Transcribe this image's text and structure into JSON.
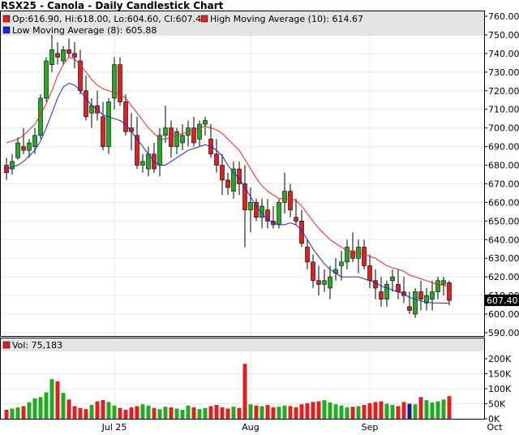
{
  "chart_data": {
    "type": "candlestick",
    "title": "RSX25 - Canola - Daily Candlestick Chart",
    "legend": {
      "ohlc": "Op:616.90, Hi:618.00, Lo:604.60, Cl:607.40",
      "high_ma": "High Moving Average (10): 614.67",
      "low_ma": "Low Moving Average (8): 605.88",
      "volume": "Vol: 75,183"
    },
    "colors": {
      "up": "#22aa22",
      "down": "#e02020",
      "high_ma": "#ee2222",
      "low_ma": "#2222dd",
      "vol_special": "#1a1a8c",
      "panel_header": "#e4e4e4",
      "last_box": "#000000"
    },
    "price_axis": {
      "min": 590,
      "max": 760,
      "step": 10,
      "ticks": [
        "760.00",
        "750.00",
        "740.00",
        "730.00",
        "720.00",
        "710.00",
        "700.00",
        "690.00",
        "680.00",
        "670.00",
        "660.00",
        "650.00",
        "640.00",
        "630.00",
        "620.00",
        "610.00",
        "600.00",
        "590.00"
      ]
    },
    "last_price": "607.40",
    "last_value": 607.4,
    "volume_axis": {
      "min": 0,
      "max": 200000,
      "ticks": [
        "200K",
        "150K",
        "100K",
        "50K",
        "0K"
      ],
      "tick_values": [
        200000,
        150000,
        100000,
        50000,
        0
      ]
    },
    "x_labels": [
      {
        "label": "Jul 25",
        "index": 19
      },
      {
        "label": "Aug",
        "index": 43
      },
      {
        "label": "Sep",
        "index": 64
      },
      {
        "label": "Oct",
        "index": 86
      }
    ],
    "candles": [
      [
        680,
        684,
        672,
        676
      ],
      [
        678,
        686,
        675,
        682
      ],
      [
        684,
        695,
        683,
        692
      ],
      [
        690,
        700,
        686,
        688
      ],
      [
        688,
        694,
        684,
        692
      ],
      [
        690,
        700,
        686,
        696
      ],
      [
        696,
        718,
        694,
        716
      ],
      [
        716,
        738,
        714,
        736
      ],
      [
        734,
        750,
        730,
        742
      ],
      [
        740,
        746,
        734,
        738
      ],
      [
        736,
        744,
        734,
        742
      ],
      [
        742,
        748,
        738,
        740
      ],
      [
        740,
        746,
        732,
        738
      ],
      [
        736,
        742,
        718,
        720
      ],
      [
        720,
        728,
        704,
        706
      ],
      [
        708,
        716,
        700,
        712
      ],
      [
        712,
        720,
        704,
        708
      ],
      [
        706,
        714,
        688,
        690
      ],
      [
        690,
        716,
        686,
        714
      ],
      [
        716,
        738,
        710,
        734
      ],
      [
        734,
        738,
        712,
        714
      ],
      [
        714,
        718,
        696,
        698
      ],
      [
        700,
        708,
        688,
        698
      ],
      [
        696,
        706,
        678,
        680
      ],
      [
        680,
        686,
        676,
        682
      ],
      [
        678,
        690,
        674,
        686
      ],
      [
        686,
        692,
        676,
        678
      ],
      [
        680,
        700,
        674,
        696
      ],
      [
        696,
        712,
        692,
        700
      ],
      [
        700,
        704,
        684,
        690
      ],
      [
        690,
        700,
        686,
        698
      ],
      [
        692,
        702,
        688,
        696
      ],
      [
        696,
        704,
        690,
        700
      ],
      [
        700,
        706,
        690,
        692
      ],
      [
        694,
        704,
        690,
        702
      ],
      [
        702,
        706,
        696,
        704
      ],
      [
        694,
        702,
        684,
        686
      ],
      [
        686,
        694,
        676,
        680
      ],
      [
        680,
        686,
        664,
        672
      ],
      [
        672,
        676,
        664,
        668
      ],
      [
        666,
        682,
        662,
        678
      ],
      [
        678,
        682,
        664,
        670
      ],
      [
        670,
        680,
        636,
        656
      ],
      [
        656,
        668,
        644,
        660
      ],
      [
        660,
        662,
        650,
        652
      ],
      [
        652,
        662,
        646,
        658
      ],
      [
        656,
        662,
        646,
        650
      ],
      [
        650,
        658,
        646,
        648
      ],
      [
        648,
        662,
        646,
        660
      ],
      [
        660,
        676,
        654,
        666
      ],
      [
        666,
        670,
        652,
        656
      ],
      [
        652,
        662,
        648,
        650
      ],
      [
        650,
        656,
        636,
        638
      ],
      [
        636,
        640,
        624,
        628
      ],
      [
        628,
        632,
        614,
        618
      ],
      [
        618,
        626,
        610,
        616
      ],
      [
        616,
        624,
        612,
        618
      ],
      [
        614,
        626,
        608,
        620
      ],
      [
        622,
        630,
        618,
        624
      ],
      [
        626,
        634,
        618,
        628
      ],
      [
        628,
        640,
        624,
        636
      ],
      [
        634,
        644,
        628,
        630
      ],
      [
        630,
        640,
        622,
        636
      ],
      [
        636,
        640,
        624,
        626
      ],
      [
        626,
        632,
        614,
        618
      ],
      [
        618,
        624,
        608,
        614
      ],
      [
        612,
        620,
        604,
        608
      ],
      [
        608,
        618,
        604,
        616
      ],
      [
        618,
        624,
        612,
        620
      ],
      [
        616,
        624,
        608,
        612
      ],
      [
        612,
        620,
        606,
        610
      ],
      [
        604,
        612,
        600,
        602
      ],
      [
        600,
        614,
        598,
        612
      ],
      [
        612,
        618,
        602,
        608
      ],
      [
        606,
        614,
        602,
        610
      ],
      [
        608,
        618,
        602,
        612
      ],
      [
        612,
        620,
        608,
        618
      ],
      [
        616,
        620,
        610,
        618
      ],
      [
        616.9,
        618,
        604.6,
        607.4
      ]
    ],
    "high_ma": [
      692,
      693,
      694,
      696,
      699,
      702,
      707,
      713,
      720,
      728,
      734,
      738,
      737,
      734,
      730,
      726,
      723,
      721,
      720,
      719,
      718,
      716,
      712,
      708,
      704,
      700,
      697,
      694,
      694,
      695,
      696,
      697,
      698,
      699,
      700,
      701,
      700,
      699,
      697,
      694,
      691,
      688,
      683,
      678,
      673,
      669,
      666,
      664,
      662,
      662,
      662,
      661,
      658,
      654,
      650,
      646,
      643,
      640,
      638,
      636,
      634,
      634,
      633,
      632,
      631,
      630,
      628,
      626,
      625,
      624,
      623,
      621,
      620,
      619,
      618,
      617,
      616,
      615.5,
      614.67
    ],
    "low_ma": [
      678,
      679,
      680,
      682,
      685,
      688,
      693,
      700,
      708,
      716,
      722,
      724,
      723,
      720,
      716,
      712,
      710,
      707,
      706,
      705,
      704,
      702,
      698,
      694,
      690,
      686,
      682,
      680,
      680,
      682,
      684,
      686,
      688,
      689,
      690,
      691,
      690,
      688,
      685,
      680,
      676,
      673,
      668,
      663,
      658,
      654,
      651,
      649,
      648,
      648,
      649,
      648,
      645,
      640,
      635,
      631,
      627,
      624,
      622,
      620,
      620,
      620,
      620,
      619,
      618,
      617,
      615,
      614,
      613,
      612,
      611,
      609,
      608,
      607,
      606.5,
      606,
      606,
      605.9,
      605.88
    ],
    "volumes": [
      30000,
      34000,
      38000,
      42000,
      55000,
      68000,
      72000,
      88000,
      132000,
      125000,
      86000,
      64000,
      42000,
      36000,
      32000,
      46000,
      58000,
      62000,
      56000,
      44000,
      36000,
      30000,
      38000,
      42000,
      48000,
      44000,
      36000,
      32000,
      40000,
      38000,
      34000,
      30000,
      44000,
      38000,
      32000,
      36000,
      42000,
      46000,
      38000,
      34000,
      40000,
      36000,
      183000,
      48000,
      44000,
      42000,
      46000,
      38000,
      40000,
      44000,
      42000,
      38000,
      48000,
      52000,
      56000,
      58000,
      62000,
      54000,
      48000,
      44000,
      38000,
      40000,
      42000,
      46000,
      52000,
      56000,
      58000,
      50000,
      46000,
      42000,
      56000,
      50000,
      48000,
      72000,
      62000,
      54000,
      58000,
      64000,
      75183
    ],
    "volume_special_index": 71
  }
}
